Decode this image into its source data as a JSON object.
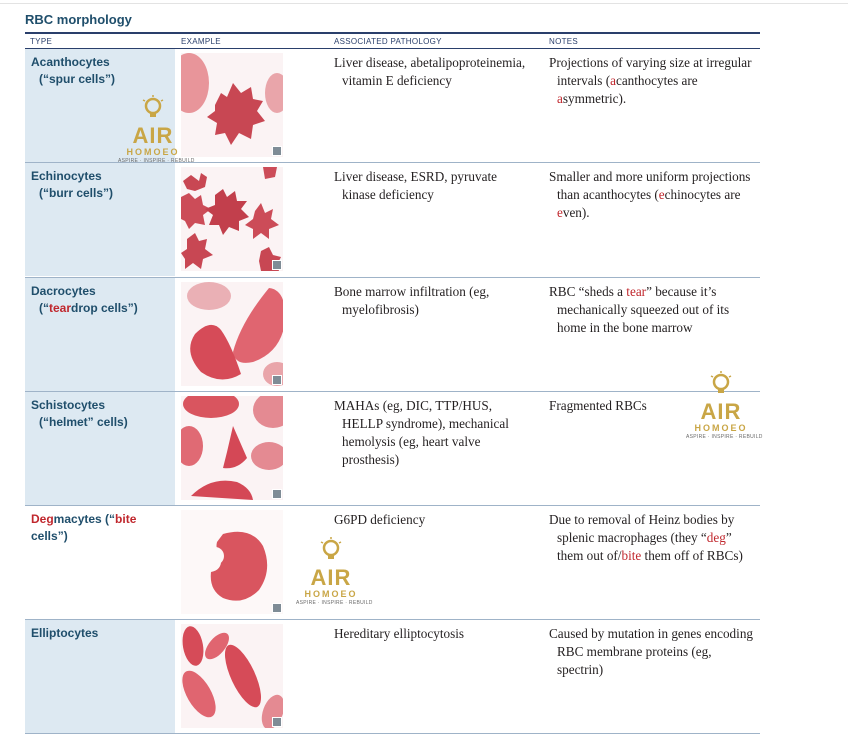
{
  "title": "RBC morphology",
  "headers": [
    "TYPE",
    "EXAMPLE",
    "ASSOCIATED PATHOLOGY",
    "NOTES"
  ],
  "rows": [
    {
      "type_main": "Acanthocytes",
      "type_sub": "(“spur cells”)",
      "pathology": [
        "Liver disease, abetalipoproteinemia,",
        "vitamin E deficiency"
      ],
      "notes_html": "Projections of varying size at irregular intervals (<span class=\"red\">a</span>canthocytes are <span class=\"red\">a</span>symmetric).",
      "image_alt": "acanthocyte-micrograph"
    },
    {
      "type_main": "Echinocytes",
      "type_sub": "(“burr cells”)",
      "pathology": [
        "Liver disease, ESRD, pyruvate",
        "kinase deficiency"
      ],
      "notes_html": "Smaller and more uniform projections than acanthocytes (<span class=\"red\">e</span>chinocytes are <span class=\"red\">e</span>ven).",
      "image_alt": "echinocyte-micrograph"
    },
    {
      "type_main": "Dacrocytes",
      "type_sub_html": "(“<span class=\"red\">tear</span>drop cells”)",
      "pathology": [
        "Bone marrow infiltration (eg,",
        "myelofibrosis)"
      ],
      "notes_html": "RBC “sheds a <span class=\"red\">tear</span>” because it’s mechanically squeezed out of its home in the bone marrow",
      "image_alt": "dacrocyte-micrograph"
    },
    {
      "type_main": "Schistocytes",
      "type_sub": "(“helmet” cells)",
      "pathology": [
        "MAHAs (eg, DIC, TTP/HUS,",
        "HELLP syndrome), mechanical",
        "hemolysis (eg, heart valve",
        "prosthesis)"
      ],
      "notes_html": "Fragmented RBCs",
      "image_alt": "schistocyte-micrograph"
    },
    {
      "type_main_html": "<span class=\"red\">Deg</span>macytes (“<span class=\"red\">bite</span>",
      "type_sub": "cells”)",
      "pathology": [
        "G6PD deficiency"
      ],
      "notes_html": "Due to removal of Heinz bodies by splenic macrophages (they “<span class=\"red\">deg</span>” them out of/<span class=\"red\">bite</span> them off of RBCs)",
      "image_alt": "degmacyte-micrograph"
    },
    {
      "type_main": "Elliptocytes",
      "type_sub": "",
      "pathology": [
        "Hereditary elliptocytosis"
      ],
      "notes_html": "Caused by mutation in genes encoding RBC membrane proteins (eg, spectrin)",
      "image_alt": "elliptocyte-micrograph"
    }
  ],
  "watermark": {
    "brand": "AIR",
    "name": "HOMOEO",
    "tagline": "ASPIRE · INSPIRE · REBUILD"
  },
  "colors": {
    "title": "#1f4e6b",
    "type_column_bg": "#dde9f2",
    "highlight_red": "#c0272d",
    "rbc_fill": "#d9555f",
    "watermark_gold": "#c9a646"
  }
}
